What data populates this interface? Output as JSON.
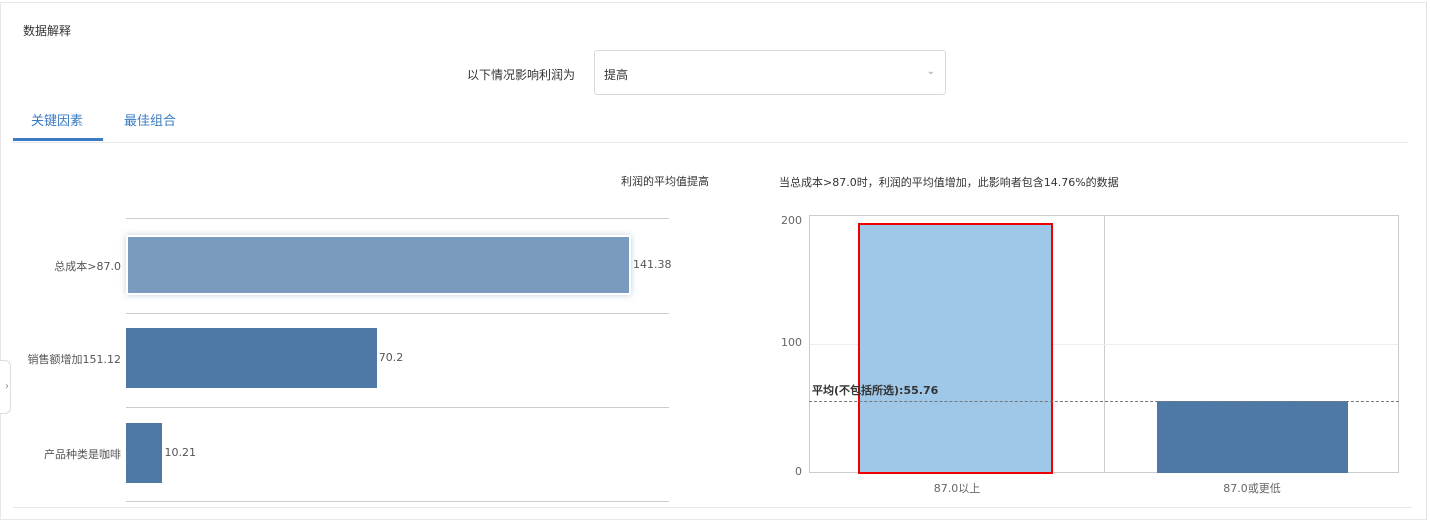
{
  "panel": {
    "title": "数据解释"
  },
  "filter": {
    "label": "以下情况影响利润为",
    "value": "提高"
  },
  "tabs": [
    {
      "label": "关键因素",
      "active": true
    },
    {
      "label": "最佳组合",
      "active": false
    }
  ],
  "chart_data": [
    {
      "type": "bar",
      "orientation": "horizontal",
      "title": "利润的平均值提高",
      "categories": [
        "总成本>87.0",
        "销售额增加151.12",
        "产品种类是咖啡"
      ],
      "values": [
        141.38,
        70.2,
        10.21
      ],
      "value_labels": [
        "141.38",
        "70.2",
        "10.21"
      ],
      "selected_index": 0,
      "colors": {
        "bar": "#4e79a7",
        "selected": "#7a9bbf"
      }
    },
    {
      "type": "bar",
      "title": "当总成本>87.0时，利润的平均值增加，此影响者包含14.76%的数据",
      "categories": [
        "87.0以上",
        "87.0或更低"
      ],
      "values": [
        197.14,
        55.76
      ],
      "ylim": [
        0,
        210
      ],
      "yticks": [
        "0",
        "100",
        "200"
      ],
      "reference_line": {
        "label": "平均(不包括所选):55.76",
        "value": 55.76
      },
      "selected_index": 0,
      "grid": true,
      "colors": {
        "bar": "#4e79a7",
        "selected": "#9fc8e8",
        "highlight_border": "#e00000"
      }
    }
  ]
}
